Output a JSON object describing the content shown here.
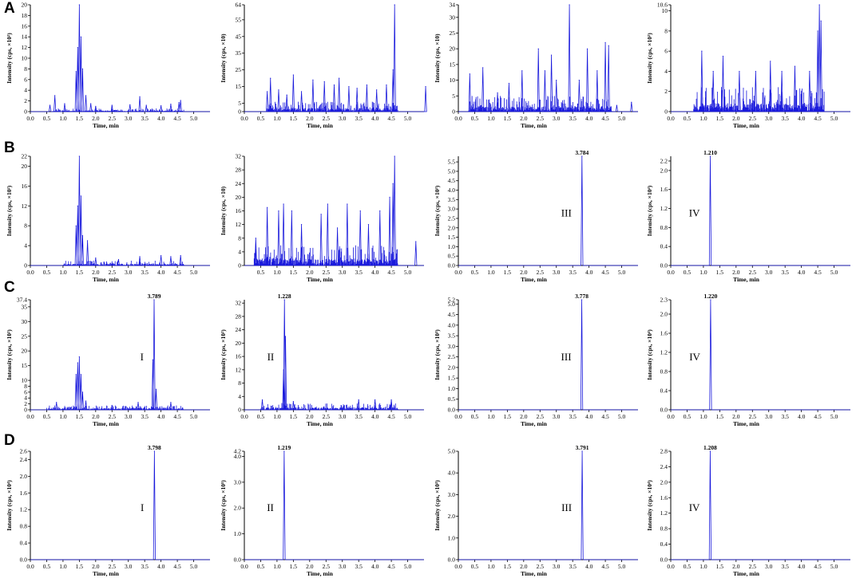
{
  "rows": [
    {
      "label": "A"
    },
    {
      "label": "B"
    },
    {
      "label": "C"
    },
    {
      "label": "D"
    }
  ],
  "xlabel": "Time, min",
  "colors": {
    "trace": "#1a1adc",
    "axis": "#000000",
    "peak_label": "#000000"
  },
  "chart_data": [
    {
      "id": "A1",
      "type": "line",
      "ylabel": "Intensity (cps, ×10²)",
      "yticks": [
        "0",
        "2",
        "4",
        "6",
        "8",
        "10",
        "12",
        "14",
        "16",
        "18",
        "20"
      ],
      "ylim": [
        0,
        20
      ],
      "xticks": [
        "0.0",
        "0.5",
        "1.0",
        "1.5",
        "2.0",
        "2.5",
        "3.0",
        "3.5",
        "4.0",
        "4.5",
        "5.0"
      ],
      "xlim": [
        0,
        5.5
      ],
      "peaks": [
        [
          0.6,
          1.2
        ],
        [
          0.75,
          3.0
        ],
        [
          1.05,
          1.5
        ],
        [
          1.4,
          7.5
        ],
        [
          1.45,
          12
        ],
        [
          1.5,
          20
        ],
        [
          1.55,
          14
        ],
        [
          1.6,
          8
        ],
        [
          1.7,
          3
        ],
        [
          1.85,
          1.5
        ],
        [
          2.0,
          1
        ],
        [
          2.5,
          1.2
        ],
        [
          3.05,
          1.3
        ],
        [
          3.35,
          2.8
        ],
        [
          3.55,
          1.2
        ],
        [
          4.0,
          1.1
        ],
        [
          4.3,
          1.4
        ],
        [
          4.55,
          1.7
        ],
        [
          4.6,
          2.1
        ]
      ],
      "noise": [
        0.7,
        4.7,
        0.6
      ]
    },
    {
      "id": "A2",
      "type": "line",
      "ylabel": "Intensity (cps, ×10)",
      "yticks": [
        "0",
        "5",
        "15",
        "25",
        "35",
        "45",
        "55",
        "64"
      ],
      "ylim": [
        0,
        64
      ],
      "xticks": [
        "0.0",
        "0.5",
        "1.0",
        "1.5",
        "2.0",
        "2.5",
        "3.0",
        "3.5",
        "4.0",
        "4.5",
        "5.0"
      ],
      "xlim": [
        0,
        5.5
      ],
      "peaks": [
        [
          0.7,
          12
        ],
        [
          0.8,
          20
        ],
        [
          1.05,
          13
        ],
        [
          1.3,
          10
        ],
        [
          1.5,
          22
        ],
        [
          1.75,
          12
        ],
        [
          2.1,
          19
        ],
        [
          2.45,
          18
        ],
        [
          2.75,
          16
        ],
        [
          2.9,
          20
        ],
        [
          3.2,
          15
        ],
        [
          3.45,
          14
        ],
        [
          3.75,
          16
        ],
        [
          4.05,
          13
        ],
        [
          4.35,
          16
        ],
        [
          4.55,
          25
        ],
        [
          4.6,
          64
        ],
        [
          5.55,
          15
        ]
      ],
      "noise": [
        0.7,
        4.7,
        6
      ]
    },
    {
      "id": "A3",
      "type": "line",
      "ylabel": "Intensity (cps, ×10)",
      "yticks": [
        "0",
        "5",
        "10",
        "15",
        "20",
        "25",
        "30",
        "34"
      ],
      "ylim": [
        0,
        34
      ],
      "xticks": [
        "0.0",
        "0.5",
        "1.0",
        "1.5",
        "2.0",
        "2.5",
        "3.0",
        "3.5",
        "4.0",
        "4.5",
        "5.0"
      ],
      "xlim": [
        0,
        5.5
      ],
      "peaks": [
        [
          0.35,
          12
        ],
        [
          0.75,
          14
        ],
        [
          1.2,
          6
        ],
        [
          1.55,
          9
        ],
        [
          1.95,
          13
        ],
        [
          2.45,
          20
        ],
        [
          2.65,
          13
        ],
        [
          2.85,
          18
        ],
        [
          3.0,
          10
        ],
        [
          3.4,
          34
        ],
        [
          3.7,
          10
        ],
        [
          3.95,
          20
        ],
        [
          4.25,
          13
        ],
        [
          4.5,
          22
        ],
        [
          4.6,
          21
        ],
        [
          4.85,
          2
        ],
        [
          5.3,
          3
        ]
      ],
      "noise": [
        0.3,
        4.7,
        5
      ]
    },
    {
      "id": "A4",
      "type": "line",
      "ylabel": "Intensity (cps, ×10²)",
      "yticks": [
        "0",
        "2",
        "4",
        "6",
        "8",
        "10",
        "10.6"
      ],
      "ylim": [
        0,
        10.6
      ],
      "xticks": [
        "0.0",
        "0.5",
        "1.0",
        "1.5",
        "2.0",
        "2.5",
        "3.0",
        "3.5",
        "4.0",
        "4.5",
        "5.0"
      ],
      "xlim": [
        0,
        5.5
      ],
      "peaks": [
        [
          0.95,
          6
        ],
        [
          1.3,
          4
        ],
        [
          1.6,
          5.5
        ],
        [
          2.1,
          4
        ],
        [
          2.6,
          4
        ],
        [
          3.05,
          5
        ],
        [
          3.4,
          4
        ],
        [
          3.8,
          4.5
        ],
        [
          4.25,
          4
        ],
        [
          4.5,
          8
        ],
        [
          4.55,
          10.6
        ],
        [
          4.6,
          9
        ]
      ],
      "noise": [
        0.7,
        4.7,
        2.5
      ]
    },
    {
      "id": "B1",
      "type": "line",
      "ylabel": "Intensity (cps, ×10²)",
      "yticks": [
        "0",
        "4",
        "8",
        "12",
        "16",
        "20",
        "22"
      ],
      "ylim": [
        0,
        22
      ],
      "xticks": [
        "0.0",
        "0.5",
        "1.0",
        "1.5",
        "2.0",
        "2.5",
        "3.0",
        "3.5",
        "4.0",
        "4.5",
        "5.0"
      ],
      "xlim": [
        0,
        5.5
      ],
      "peaks": [
        [
          1.4,
          8
        ],
        [
          1.45,
          12
        ],
        [
          1.5,
          22
        ],
        [
          1.55,
          14
        ],
        [
          1.6,
          6
        ],
        [
          1.75,
          5
        ],
        [
          2.0,
          1.5
        ],
        [
          2.7,
          1.2
        ],
        [
          3.35,
          1.8
        ],
        [
          4.0,
          2
        ],
        [
          4.3,
          1.8
        ],
        [
          4.6,
          2
        ]
      ],
      "noise": [
        1.0,
        4.7,
        1.0
      ]
    },
    {
      "id": "B2",
      "type": "line",
      "ylabel": "Intensity (cps, ×10)",
      "yticks": [
        "0",
        "4",
        "8",
        "12",
        "16",
        "20",
        "24",
        "28",
        "32"
      ],
      "ylim": [
        0,
        32
      ],
      "xticks": [
        "0.5",
        "1.0",
        "1.5",
        "2.0",
        "2.5",
        "3.0",
        "3.5",
        "4.0",
        "4.5",
        "5.0"
      ],
      "xlim": [
        0,
        5.5
      ],
      "peaks": [
        [
          0.35,
          8
        ],
        [
          0.7,
          17
        ],
        [
          1.05,
          16
        ],
        [
          1.2,
          18
        ],
        [
          1.45,
          16
        ],
        [
          1.75,
          12
        ],
        [
          2.35,
          15
        ],
        [
          2.55,
          18
        ],
        [
          2.85,
          11
        ],
        [
          3.15,
          18
        ],
        [
          3.55,
          16
        ],
        [
          3.8,
          12
        ],
        [
          4.15,
          16
        ],
        [
          4.45,
          20
        ],
        [
          4.55,
          24
        ],
        [
          4.6,
          32
        ],
        [
          5.25,
          7
        ]
      ],
      "noise": [
        0.3,
        4.7,
        6
      ]
    },
    {
      "id": "B3",
      "type": "line",
      "ylabel": "Intensity (cps, ×10³)",
      "yticks": [
        "0.0",
        "0.5",
        "1.0",
        "1.5",
        "2.0",
        "2.5",
        "3.0",
        "3.5",
        "4.0",
        "4.5",
        "5.0",
        "5.5"
      ],
      "ylim": [
        0,
        5.8
      ],
      "xticks": [
        "0.0",
        "0.5",
        "1.0",
        "1.5",
        "2.0",
        "2.5",
        "3.0",
        "3.5",
        "4.0",
        "4.5",
        "5.0"
      ],
      "xlim": [
        0,
        5.5
      ],
      "peaks": [
        [
          3.784,
          5.8
        ]
      ],
      "peak_label": "3.784",
      "compound": "III",
      "noise": [
        0,
        0,
        0
      ]
    },
    {
      "id": "B4",
      "type": "line",
      "ylabel": "Intensity (cps, ×10⁴)",
      "yticks": [
        "0.0",
        "0.4",
        "0.8",
        "1.2",
        "1.6",
        "2.0",
        "2.2"
      ],
      "ylim": [
        0,
        2.3
      ],
      "xticks": [
        "0.0",
        "0.5",
        "1.0",
        "1.5",
        "2.0",
        "2.5",
        "3.0",
        "3.5",
        "4.0",
        "4.5",
        "5.0"
      ],
      "xlim": [
        0,
        5.5
      ],
      "peaks": [
        [
          1.21,
          2.3
        ]
      ],
      "peak_label": "1.210",
      "compound": "IV",
      "noise": [
        0,
        0,
        0
      ]
    },
    {
      "id": "C1",
      "type": "line",
      "ylabel": "Intensity (cps, ×10²)",
      "yticks": [
        "0",
        "2",
        "4",
        "6",
        "8",
        "10",
        "15",
        "20",
        "25",
        "30",
        "35",
        "37.4"
      ],
      "ylim": [
        0,
        37.4
      ],
      "xticks": [
        "0.0",
        "0.5",
        "1.0",
        "1.5",
        "2.0",
        "2.5",
        "3.0",
        "3.5",
        "4.0",
        "4.5",
        "5.0"
      ],
      "xlim": [
        0,
        5.5
      ],
      "peaks": [
        [
          0.8,
          2.5
        ],
        [
          1.4,
          12
        ],
        [
          1.45,
          16
        ],
        [
          1.5,
          18
        ],
        [
          1.55,
          12
        ],
        [
          1.6,
          6
        ],
        [
          1.7,
          3
        ],
        [
          2.5,
          1.5
        ],
        [
          3.3,
          2.5
        ],
        [
          3.75,
          17
        ],
        [
          3.789,
          37.4
        ],
        [
          3.85,
          7
        ],
        [
          4.3,
          2.5
        ]
      ],
      "peak_label": "3.789",
      "compound": "I",
      "noise": [
        0.5,
        4.7,
        1.5
      ]
    },
    {
      "id": "C2",
      "type": "line",
      "ylabel": "Intensity (cps, ×10²)",
      "yticks": [
        "0",
        "4",
        "8",
        "12",
        "16",
        "20",
        "24",
        "28",
        "32"
      ],
      "ylim": [
        0,
        33
      ],
      "xticks": [
        "0.0",
        "0.5",
        "1.0",
        "1.5",
        "2.0",
        "2.5",
        "3.0",
        "3.5",
        "4.0",
        "4.5",
        "5.0"
      ],
      "xlim": [
        0,
        5.5
      ],
      "peaks": [
        [
          0.55,
          3
        ],
        [
          1.2,
          12
        ],
        [
          1.228,
          33
        ],
        [
          1.26,
          22
        ],
        [
          1.5,
          2.5
        ],
        [
          3.5,
          3
        ],
        [
          4.0,
          3
        ],
        [
          4.5,
          3
        ]
      ],
      "peak_label": "1.228",
      "compound": "II",
      "noise": [
        0.5,
        4.7,
        2
      ]
    },
    {
      "id": "C3",
      "type": "line",
      "ylabel": "Intensity (cps, ×10³)",
      "yticks": [
        "0.0",
        "0.5",
        "1.0",
        "1.5",
        "2.0",
        "2.5",
        "3.0",
        "3.5",
        "4.0",
        "4.5",
        "5.0",
        "5.2"
      ],
      "ylim": [
        0,
        5.2
      ],
      "xticks": [
        "0.0",
        "0.5",
        "1.0",
        "1.5",
        "2.0",
        "2.5",
        "3.0",
        "3.5",
        "4.0",
        "4.5",
        "5.0"
      ],
      "xlim": [
        0,
        5.5
      ],
      "peaks": [
        [
          3.778,
          5.2
        ]
      ],
      "peak_label": "3.778",
      "compound": "III",
      "noise": [
        0,
        0,
        0
      ]
    },
    {
      "id": "C4",
      "type": "line",
      "ylabel": "Intensity (cps, ×10⁴)",
      "yticks": [
        "0.0",
        "0.4",
        "0.8",
        "1.2",
        "1.6",
        "2.0",
        "2.3"
      ],
      "ylim": [
        0,
        2.3
      ],
      "xticks": [
        "0.0",
        "0.5",
        "1.0",
        "1.5",
        "2.0",
        "2.5",
        "3.0",
        "3.5",
        "4.0",
        "4.5",
        "5.0"
      ],
      "xlim": [
        0,
        5.5
      ],
      "peaks": [
        [
          1.22,
          2.3
        ]
      ],
      "peak_label": "1.220",
      "compound": "IV",
      "noise": [
        0,
        0,
        0
      ]
    },
    {
      "id": "D1",
      "type": "line",
      "ylabel": "Intensity (cps, ×10⁴)",
      "yticks": [
        "0.0",
        "0.4",
        "0.8",
        "1.2",
        "1.6",
        "2.0",
        "2.4",
        "2.6"
      ],
      "ylim": [
        0,
        2.6
      ],
      "xticks": [
        "0.0",
        "0.5",
        "1.0",
        "1.5",
        "2.0",
        "2.5",
        "3.0",
        "3.5",
        "4.0",
        "4.5",
        "5.0"
      ],
      "xlim": [
        0,
        5.5
      ],
      "peaks": [
        [
          3.798,
          2.6
        ]
      ],
      "peak_label": "3.798",
      "compound": "I",
      "noise": [
        0,
        0,
        0
      ]
    },
    {
      "id": "D2",
      "type": "line",
      "ylabel": "Intensity (cps, ×10⁵)",
      "yticks": [
        "0.0",
        "1.0",
        "2.0",
        "3.0",
        "4.0",
        "4.2"
      ],
      "ylim": [
        0,
        4.2
      ],
      "xticks": [
        "0.0",
        "0.5",
        "1.0",
        "1.5",
        "2.0",
        "2.5",
        "3.0",
        "3.5",
        "4.0",
        "4.5",
        "5.0"
      ],
      "xlim": [
        0,
        5.5
      ],
      "peaks": [
        [
          1.219,
          4.2
        ]
      ],
      "peak_label": "1.219",
      "compound": "II",
      "noise": [
        0,
        0,
        0
      ]
    },
    {
      "id": "D3",
      "type": "line",
      "ylabel": "Intensity (cps, ×10³)",
      "yticks": [
        "0.0",
        "1.0",
        "2.0",
        "3.0",
        "4.0",
        "5.0"
      ],
      "ylim": [
        0,
        5.0
      ],
      "xticks": [
        "0.0",
        "0.5",
        "1.0",
        "1.5",
        "2.0",
        "2.5",
        "3.0",
        "3.5",
        "4.0",
        "4.5",
        "5.0"
      ],
      "xlim": [
        0,
        5.5
      ],
      "peaks": [
        [
          3.791,
          5.0
        ]
      ],
      "peak_label": "3.791",
      "compound": "III",
      "noise": [
        0,
        0,
        0
      ]
    },
    {
      "id": "D4",
      "type": "line",
      "ylabel": "Intensity (cps, ×10⁴)",
      "yticks": [
        "0.0",
        "0.4",
        "0.8",
        "1.2",
        "1.6",
        "2.0",
        "2.4",
        "2.8"
      ],
      "ylim": [
        0,
        2.8
      ],
      "xticks": [
        "0.0",
        "0.5",
        "1.0",
        "1.5",
        "2.0",
        "2.5",
        "3.0",
        "3.5",
        "4.0",
        "4.5",
        "5.0"
      ],
      "xlim": [
        0,
        5.5
      ],
      "peaks": [
        [
          1.208,
          2.8
        ]
      ],
      "peak_label": "1.208",
      "compound": "IV",
      "noise": [
        0,
        0,
        0
      ]
    }
  ]
}
